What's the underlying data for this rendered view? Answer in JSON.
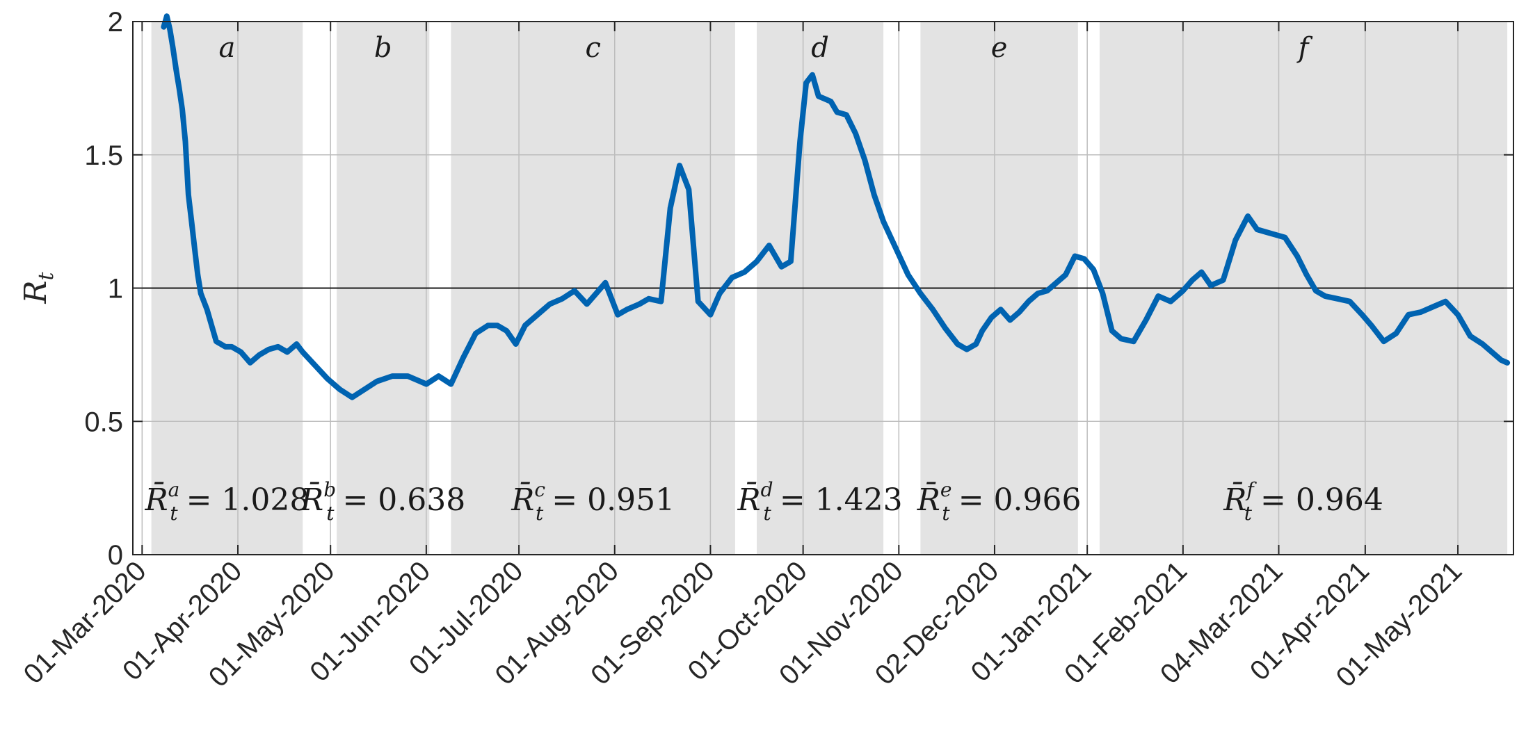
{
  "chart_data": {
    "type": "line",
    "title": "",
    "xlabel": "",
    "ylabel": "R_t",
    "ylim": [
      0,
      2
    ],
    "yticks": [
      0,
      0.5,
      1,
      1.5,
      2
    ],
    "ytick_labels": [
      "0",
      "0.5",
      "1",
      "1.5",
      "2"
    ],
    "xlim": [
      "2020-02-27",
      "2021-05-19"
    ],
    "xticks": [
      "2020-03-01",
      "2020-04-01",
      "2020-05-01",
      "2020-06-01",
      "2020-07-01",
      "2020-08-01",
      "2020-09-01",
      "2020-10-01",
      "2020-11-01",
      "2020-12-02",
      "2021-01-01",
      "2021-02-01",
      "2021-03-04",
      "2021-04-01",
      "2021-05-01"
    ],
    "xtick_labels": [
      "01-Mar-2020",
      "01-Apr-2020",
      "01-May-2020",
      "01-Jun-2020",
      "01-Jul-2020",
      "01-Aug-2020",
      "01-Sep-2020",
      "01-Oct-2020",
      "01-Nov-2020",
      "02-Dec-2020",
      "01-Jan-2021",
      "01-Feb-2021",
      "04-Mar-2021",
      "01-Apr-2021",
      "01-May-2021"
    ],
    "grid": true,
    "reference_line": 1,
    "line_color": "#0063b1",
    "shade_color": "#e3e3e3",
    "periods": [
      {
        "label": "a",
        "start": "2020-03-04",
        "end": "2020-04-22",
        "mean_label": "R̄",
        "mean_sup": "a",
        "mean_sub": "t",
        "mean_value": "= 1.028"
      },
      {
        "label": "b",
        "start": "2020-05-03",
        "end": "2020-06-02",
        "mean_label": "R̄",
        "mean_sup": "b",
        "mean_sub": "t",
        "mean_value": "= 0.638"
      },
      {
        "label": "c",
        "start": "2020-06-09",
        "end": "2020-09-09",
        "mean_label": "R̄",
        "mean_sup": "c",
        "mean_sub": "t",
        "mean_value": "= 0.951"
      },
      {
        "label": "d",
        "start": "2020-09-16",
        "end": "2020-10-27",
        "mean_label": "R̄",
        "mean_sup": "d",
        "mean_sub": "t",
        "mean_value": "= 1.423"
      },
      {
        "label": "e",
        "start": "2020-11-08",
        "end": "2020-12-29",
        "mean_label": "R̄",
        "mean_sup": "e",
        "mean_sub": "t",
        "mean_value": "= 0.966"
      },
      {
        "label": "f",
        "start": "2021-01-05",
        "end": "2021-05-17",
        "mean_label": "R̄",
        "mean_sup": "f",
        "mean_sub": "t",
        "mean_value": "= 0.964"
      }
    ],
    "series": [
      {
        "x": [
          "2020-03-08",
          "2020-03-09",
          "2020-03-10",
          "2020-03-11",
          "2020-03-12",
          "2020-03-13",
          "2020-03-14",
          "2020-03-15",
          "2020-03-16",
          "2020-03-17",
          "2020-03-18",
          "2020-03-19",
          "2020-03-20",
          "2020-03-22",
          "2020-03-25",
          "2020-03-28",
          "2020-03-30",
          "2020-04-02",
          "2020-04-05",
          "2020-04-08",
          "2020-04-11",
          "2020-04-14",
          "2020-04-17",
          "2020-04-20",
          "2020-04-22",
          "2020-04-26",
          "2020-04-30",
          "2020-05-04",
          "2020-05-08",
          "2020-05-12",
          "2020-05-16",
          "2020-05-21",
          "2020-05-26",
          "2020-05-30",
          "2020-06-01",
          "2020-06-05",
          "2020-06-09",
          "2020-06-13",
          "2020-06-17",
          "2020-06-21",
          "2020-06-24",
          "2020-06-27",
          "2020-06-30",
          "2020-07-03",
          "2020-07-07",
          "2020-07-11",
          "2020-07-15",
          "2020-07-19",
          "2020-07-23",
          "2020-07-26",
          "2020-07-29",
          "2020-08-02",
          "2020-08-05",
          "2020-08-09",
          "2020-08-12",
          "2020-08-16",
          "2020-08-19",
          "2020-08-22",
          "2020-08-25",
          "2020-08-28",
          "2020-09-01",
          "2020-09-04",
          "2020-09-08",
          "2020-09-12",
          "2020-09-16",
          "2020-09-20",
          "2020-09-24",
          "2020-09-27",
          "2020-09-30",
          "2020-10-02",
          "2020-10-04",
          "2020-10-06",
          "2020-10-08",
          "2020-10-10",
          "2020-10-12",
          "2020-10-15",
          "2020-10-18",
          "2020-10-21",
          "2020-10-24",
          "2020-10-27",
          "2020-10-31",
          "2020-11-04",
          "2020-11-08",
          "2020-11-12",
          "2020-11-16",
          "2020-11-20",
          "2020-11-23",
          "2020-11-26",
          "2020-11-28",
          "2020-12-01",
          "2020-12-04",
          "2020-12-07",
          "2020-12-10",
          "2020-12-13",
          "2020-12-16",
          "2020-12-19",
          "2020-12-22",
          "2020-12-25",
          "2020-12-28",
          "2020-12-31",
          "2021-01-03",
          "2021-01-06",
          "2021-01-09",
          "2021-01-12",
          "2021-01-16",
          "2021-01-20",
          "2021-01-24",
          "2021-01-28",
          "2021-02-01",
          "2021-02-04",
          "2021-02-07",
          "2021-02-10",
          "2021-02-14",
          "2021-02-18",
          "2021-02-22",
          "2021-02-25",
          "2021-02-28",
          "2021-03-03",
          "2021-03-06",
          "2021-03-10",
          "2021-03-13",
          "2021-03-16",
          "2021-03-19",
          "2021-03-23",
          "2021-03-27",
          "2021-03-31",
          "2021-04-03",
          "2021-04-07",
          "2021-04-11",
          "2021-04-15",
          "2021-04-19",
          "2021-04-23",
          "2021-04-27",
          "2021-05-01",
          "2021-05-05",
          "2021-05-09",
          "2021-05-12",
          "2021-05-15",
          "2021-05-17"
        ],
        "y": [
          1.98,
          2.02,
          1.97,
          1.9,
          1.82,
          1.75,
          1.67,
          1.55,
          1.35,
          1.25,
          1.15,
          1.05,
          0.98,
          0.92,
          0.8,
          0.78,
          0.78,
          0.76,
          0.72,
          0.75,
          0.77,
          0.78,
          0.76,
          0.79,
          0.76,
          0.71,
          0.66,
          0.62,
          0.59,
          0.62,
          0.65,
          0.67,
          0.67,
          0.65,
          0.64,
          0.67,
          0.64,
          0.74,
          0.83,
          0.86,
          0.86,
          0.84,
          0.79,
          0.86,
          0.9,
          0.94,
          0.96,
          0.99,
          0.94,
          0.98,
          1.02,
          0.9,
          0.92,
          0.94,
          0.96,
          0.95,
          1.3,
          1.46,
          1.37,
          0.95,
          0.9,
          0.98,
          1.04,
          1.06,
          1.1,
          1.16,
          1.08,
          1.1,
          1.55,
          1.77,
          1.8,
          1.72,
          1.71,
          1.7,
          1.66,
          1.65,
          1.58,
          1.48,
          1.35,
          1.25,
          1.15,
          1.05,
          0.98,
          0.92,
          0.85,
          0.79,
          0.77,
          0.79,
          0.84,
          0.89,
          0.92,
          0.88,
          0.91,
          0.95,
          0.98,
          0.99,
          1.02,
          1.05,
          1.12,
          1.11,
          1.07,
          0.98,
          0.84,
          0.81,
          0.8,
          0.88,
          0.97,
          0.95,
          0.99,
          1.03,
          1.06,
          1.01,
          1.03,
          1.18,
          1.27,
          1.22,
          1.21,
          1.2,
          1.19,
          1.12,
          1.05,
          0.99,
          0.97,
          0.96,
          0.95,
          0.9,
          0.86,
          0.8,
          0.83,
          0.9,
          0.91,
          0.93,
          0.95,
          0.9,
          0.82,
          0.79,
          0.76,
          0.73,
          0.72
        ]
      }
    ]
  }
}
